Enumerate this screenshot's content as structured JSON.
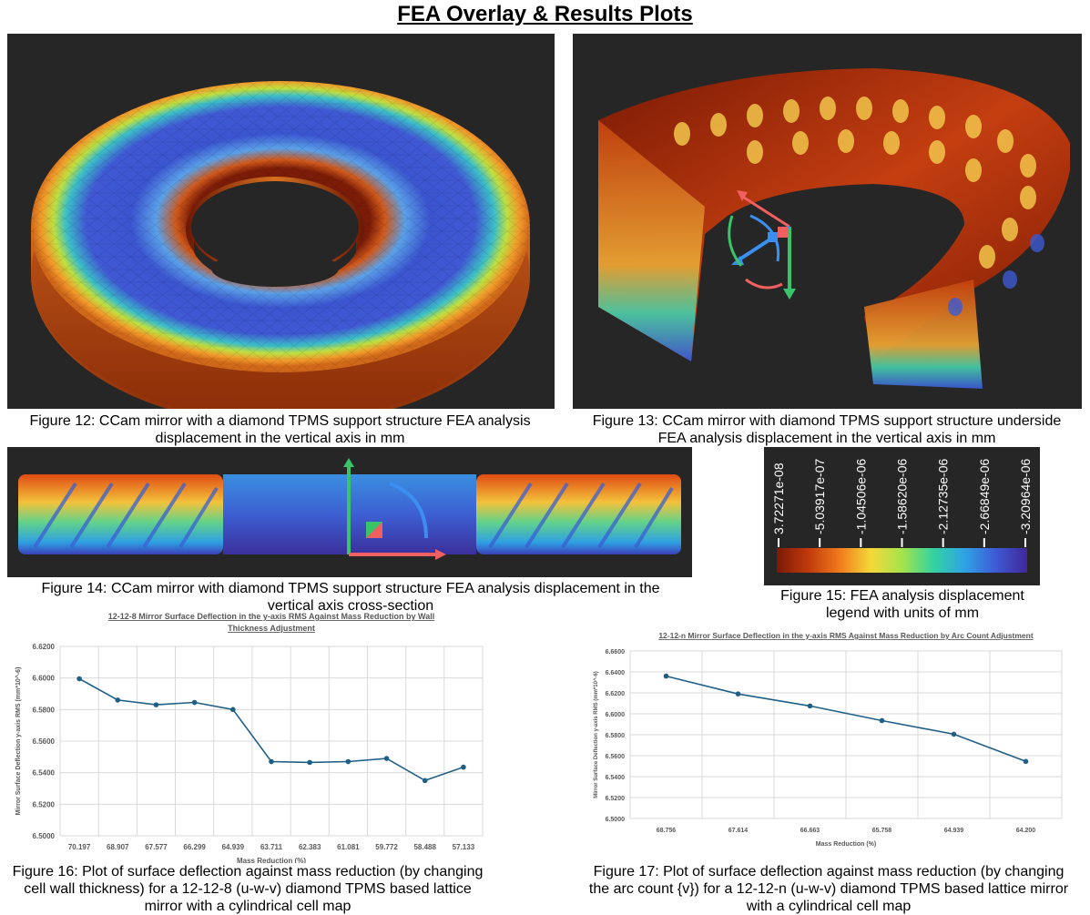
{
  "page_title": "FEA Overlay & Results Plots",
  "figures": {
    "fig12": "Figure 12: CCam mirror with a diamond TPMS support structure FEA analysis displacement in the vertical axis in mm",
    "fig13": "Figure 13: CCam mirror with diamond TPMS support structure underside FEA analysis displacement in the vertical axis in mm",
    "fig14": "Figure 14: CCam mirror with diamond TPMS support structure FEA analysis displacement in the vertical axis cross-section",
    "fig15": "Figure 15: FEA analysis displacement legend with units of mm",
    "fig16": "Figure 16: Plot of surface deflection against mass reduction (by changing cell wall thickness) for a 12-12-8 (u-w-v) diamond TPMS based lattice mirror with a cylindrical cell map",
    "fig17": "Figure 17: Plot of surface deflection against mass reduction (by changing the arc count {v}) for a 12-12-n (u-w-v) diamond TPMS based lattice mirror with a cylindrical cell map"
  },
  "legend": {
    "labels": [
      "3.72271e-08",
      "-5.03917e-07",
      "-1.04506e-06",
      "-1.58620e-06",
      "-2.12735e-06",
      "-2.66849e-06",
      "-3.20964e-06"
    ],
    "colors": [
      "#7a1a05",
      "#c0390c",
      "#f07a1a",
      "#f5d83a",
      "#a6e34a",
      "#33d3a0",
      "#2fa3e6",
      "#3e59d4",
      "#40279a"
    ]
  },
  "chart_data": [
    {
      "type": "line",
      "title_line1": "12-12-8 Mirror Surface Deflection in the y-axis RMS Against Mass Reduction by Wall",
      "title_line2": "Thickness Adjustment",
      "xlabel": "Mass Reduction (%)",
      "ylabel": "Mirror Surface Deflection y-axis RMS (mm*10^-6)",
      "categories": [
        "70.197",
        "68.907",
        "67.577",
        "66.299",
        "64.939",
        "63.711",
        "62.383",
        "61.081",
        "59.772",
        "58.488",
        "57.133"
      ],
      "values": [
        6.5995,
        6.586,
        6.583,
        6.5845,
        6.58,
        6.547,
        6.5465,
        6.547,
        6.549,
        6.535,
        6.5435
      ],
      "yticks": [
        "6.6200",
        "6.6000",
        "6.5800",
        "6.5600",
        "6.5400",
        "6.5200",
        "6.5000"
      ],
      "ylim": [
        6.5,
        6.62
      ],
      "color": "#1f5f86",
      "grid": true
    },
    {
      "type": "line",
      "title_line1": "12-12-n Mirror Surface Deflection in the y-axis RMS Against Mass Reduction by Arc Count Adjustment",
      "xlabel": "Mass Reduction (%)",
      "ylabel": "Mirror Surface Deflection y-axis RMS (mm*10^-6)",
      "categories": [
        "68.756",
        "67.614",
        "66.663",
        "65.758",
        "64.939",
        "64.200"
      ],
      "values": [
        6.636,
        6.619,
        6.6075,
        6.5935,
        6.5805,
        6.5545
      ],
      "yticks": [
        "6.6600",
        "6.6400",
        "6.6200",
        "6.6000",
        "6.5800",
        "6.5600",
        "6.5400",
        "6.5200",
        "6.5000"
      ],
      "ylim": [
        6.5,
        6.66
      ],
      "color": "#1f5f86",
      "grid": true
    }
  ]
}
